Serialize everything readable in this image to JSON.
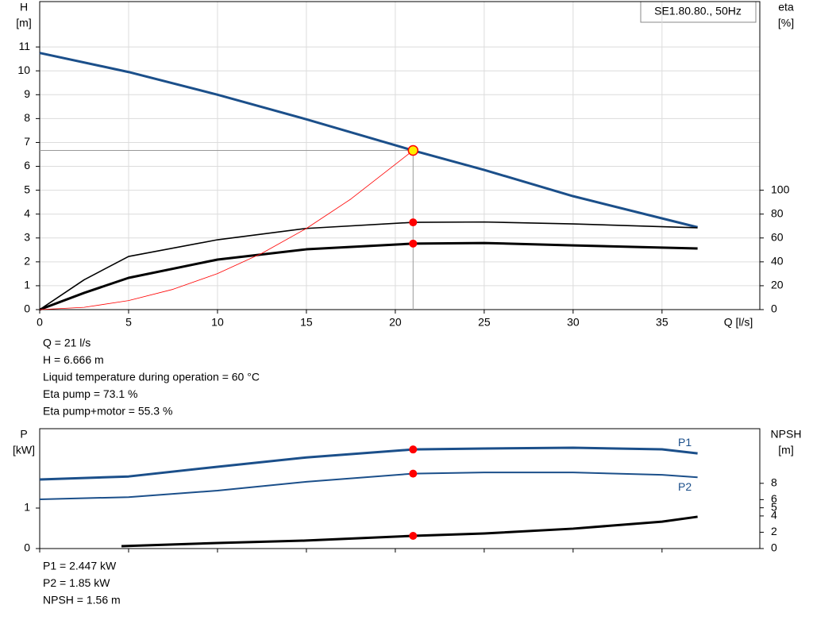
{
  "title": "SE1.80.80., 50Hz",
  "chart_data": [
    {
      "type": "line",
      "x_label": "Q [l/s]",
      "y_label": [
        "H",
        "[m]"
      ],
      "y2_label": [
        "eta",
        "[%]"
      ],
      "xlim": [
        0,
        40.5
      ],
      "xticks": [
        0,
        5,
        10,
        15,
        20,
        25,
        30,
        35
      ],
      "ylim": [
        0,
        12.9
      ],
      "yticks": [
        0,
        1,
        2,
        3,
        4,
        5,
        6,
        7,
        8,
        9,
        10,
        11
      ],
      "y2lim": [
        0,
        258
      ],
      "y2ticks": [
        0,
        20,
        40,
        60,
        80,
        100
      ],
      "grid": true,
      "series": [
        {
          "color": "#1b4f8a",
          "x": [
            0,
            5,
            10,
            15,
            21,
            25,
            30,
            37
          ],
          "values": [
            10.75,
            9.95,
            9.0,
            7.97,
            6.666,
            5.85,
            4.75,
            3.45
          ]
        },
        {
          "color": "#000000",
          "axis": "y2",
          "x": [
            0,
            2.5,
            5,
            10,
            15,
            21,
            25,
            30,
            37
          ],
          "values": [
            0,
            25,
            44.5,
            58.5,
            68,
            73.1,
            73.4,
            71.8,
            68.5
          ]
        },
        {
          "color": "#000000",
          "axis": "y2",
          "x": [
            0,
            2.5,
            5,
            10,
            15,
            21,
            25,
            30,
            37
          ],
          "values": [
            0,
            14,
            26.6,
            41.9,
            50.5,
            55.3,
            55.8,
            53.8,
            51.2
          ]
        },
        {
          "color": "#ff0000",
          "x": [
            0,
            2.5,
            5,
            7.5,
            10,
            12.5,
            15,
            17.5,
            21
          ],
          "values": [
            0,
            0.0945,
            0.378,
            0.85,
            1.51,
            2.36,
            3.4,
            4.63,
            6.666
          ]
        }
      ],
      "duty_point": {
        "x": 21,
        "y": 6.666,
        "y2": [
          73.1,
          55.3
        ]
      },
      "info": [
        "Q = 21 l/s",
        "H = 6.666 m",
        "Liquid temperature during operation = 60 °C",
        "Eta pump = 73.1 %",
        "Eta pump+motor = 55.3 %"
      ]
    },
    {
      "type": "line",
      "y_label": [
        "P",
        "[kW]"
      ],
      "y2_label": [
        "NPSH",
        "[m]"
      ],
      "xlim": [
        0,
        40.5
      ],
      "xticks": [
        0,
        5,
        10,
        15,
        20,
        25,
        30,
        35
      ],
      "ylim": [
        0,
        2.96
      ],
      "yticks": [
        0,
        1
      ],
      "y2lim": [
        0,
        14.7
      ],
      "y2ticks": [
        0,
        2,
        4,
        5,
        6,
        8
      ],
      "grid": false,
      "series": [
        {
          "name": "P1",
          "color": "#1b4f8a",
          "x": [
            0,
            5,
            10,
            15,
            21,
            25,
            30,
            35,
            37
          ],
          "values": [
            1.706,
            1.78,
            2.02,
            2.25,
            2.447,
            2.47,
            2.49,
            2.45,
            2.35
          ]
        },
        {
          "name": "P2",
          "color": "#1b4f8a",
          "x": [
            0,
            5,
            10,
            15,
            21,
            25,
            30,
            35,
            37
          ],
          "values": [
            1.216,
            1.27,
            1.43,
            1.65,
            1.85,
            1.88,
            1.88,
            1.82,
            1.76
          ]
        },
        {
          "color": "#000000",
          "axis": "y2",
          "x": [
            4.6,
            10,
            15,
            21,
            25,
            30,
            35,
            37
          ],
          "values": [
            0.29,
            0.68,
            0.98,
            1.56,
            1.85,
            2.44,
            3.3,
            3.9
          ]
        }
      ],
      "duty_point": {
        "x": 21,
        "y": [
          2.447,
          1.85
        ],
        "y2": 1.56
      },
      "info": [
        "P1 = 2.447 kW",
        "P2 = 1.85 kW",
        "NPSH = 1.56 m"
      ]
    }
  ]
}
